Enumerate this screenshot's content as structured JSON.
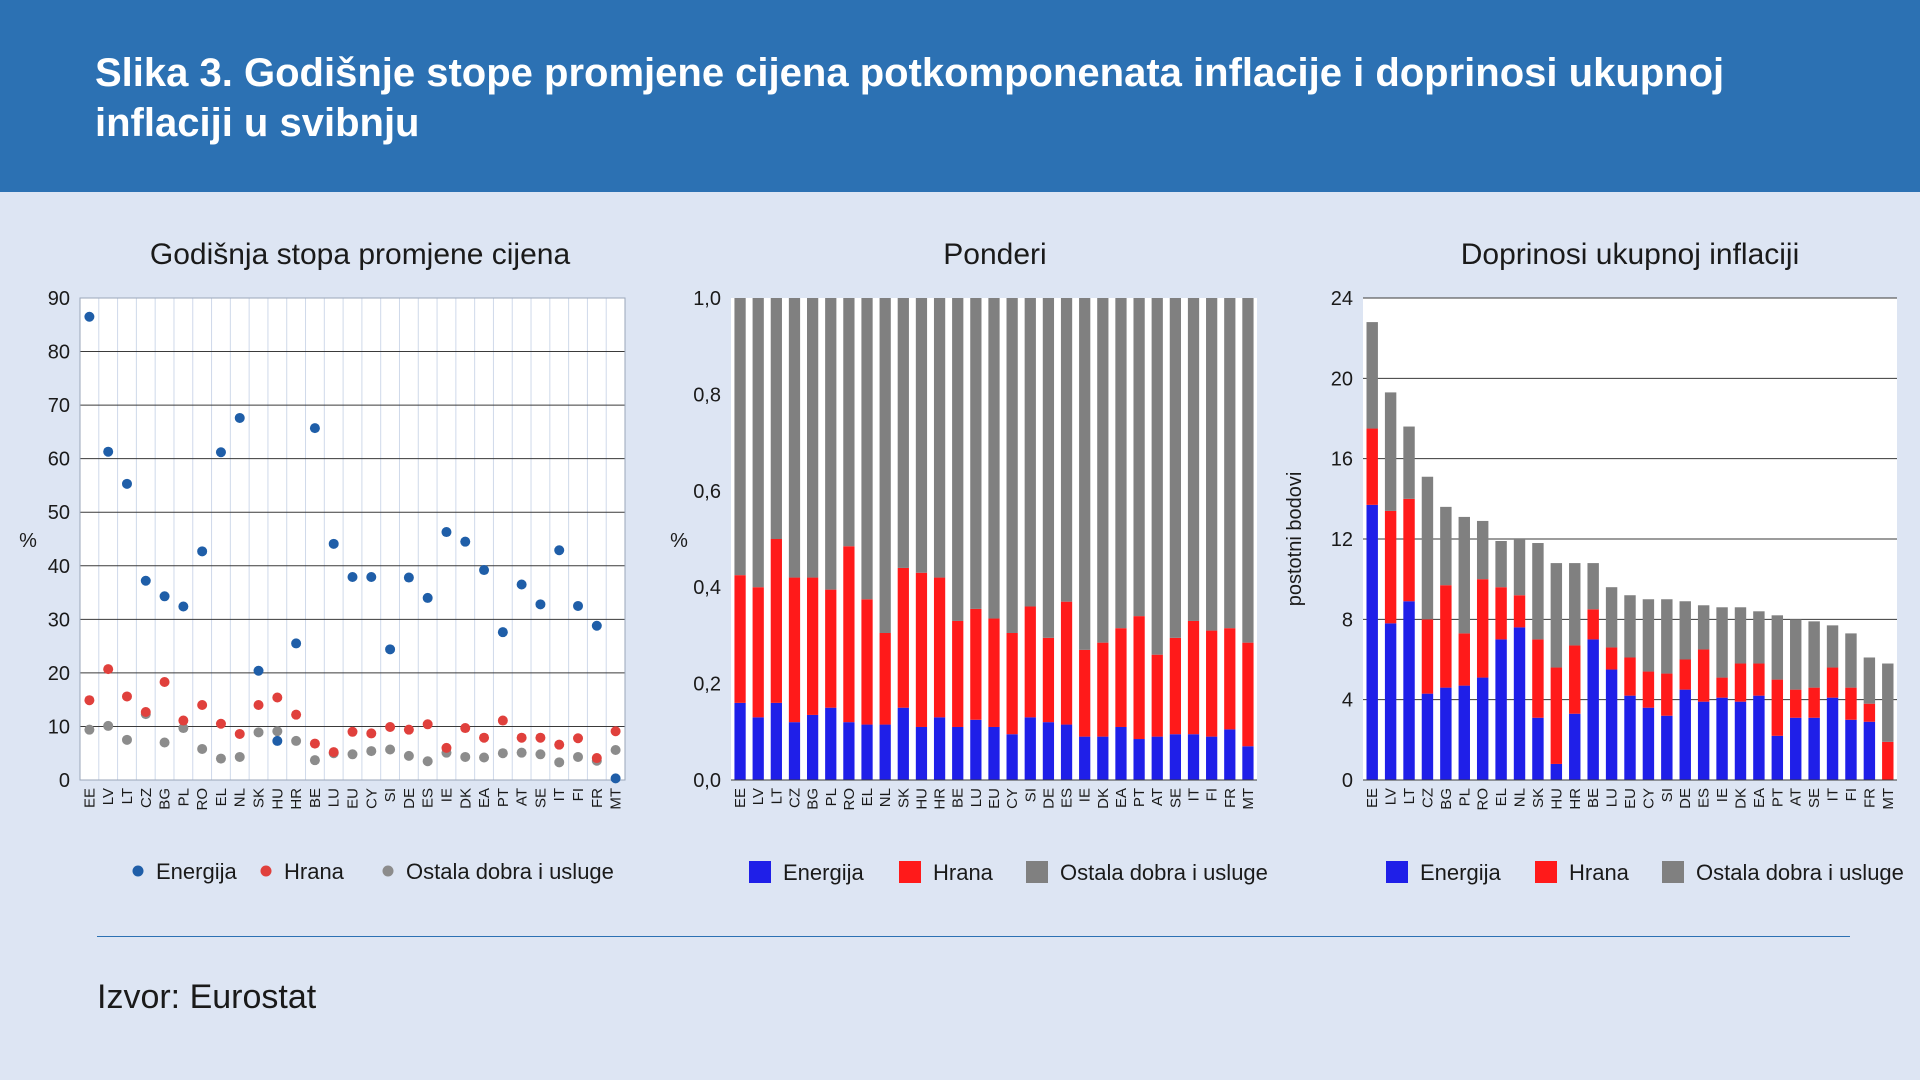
{
  "figure": {
    "title": "Slika 3. Godišnje stope promjene cijena potkomponenata inflacije i doprinosi ukupnoj inflaciji u svibnju",
    "source": "Izvor: Eurostat"
  },
  "colors": {
    "header": "#2c71b3",
    "background": "#dde5f3",
    "energy_dot": "#1f5ea8",
    "food_dot": "#e0403c",
    "other_dot": "#8c8c8c",
    "energy_bar": "#1f1fe8",
    "food_bar": "#ff1a1a",
    "other_bar": "#808080"
  },
  "chart_data": [
    {
      "type": "scatter",
      "title": "Godišnja stopa promjene cijena",
      "ylabel": "%",
      "ylim": [
        0,
        90
      ],
      "yticks": [
        "0",
        "10",
        "20",
        "30",
        "40",
        "50",
        "60",
        "70",
        "80",
        "90"
      ],
      "grid": true,
      "legend": "bottom",
      "categories": [
        "EE",
        "LV",
        "LT",
        "CZ",
        "BG",
        "PL",
        "RO",
        "EL",
        "NL",
        "SK",
        "HU",
        "HR",
        "BE",
        "LU",
        "EU",
        "CY",
        "SI",
        "DE",
        "ES",
        "IE",
        "DK",
        "EA",
        "PT",
        "AT",
        "SE",
        "IT",
        "FI",
        "FR",
        "MT"
      ],
      "series": [
        {
          "name": "Energija",
          "values": [
            86.5,
            61.3,
            55.3,
            37.2,
            34.3,
            32.4,
            42.7,
            61.2,
            67.6,
            20.4,
            7.3,
            25.5,
            65.7,
            44.1,
            37.9,
            37.9,
            24.4,
            37.8,
            34.0,
            46.3,
            44.5,
            39.2,
            27.6,
            36.5,
            32.8,
            42.9,
            32.5,
            28.8,
            0.3
          ]
        },
        {
          "name": "Hrana",
          "values": [
            14.9,
            20.7,
            15.6,
            12.7,
            18.3,
            11.1,
            14.0,
            10.5,
            8.6,
            14.0,
            15.4,
            12.2,
            6.8,
            5.2,
            9.0,
            8.7,
            9.9,
            9.4,
            10.4,
            6.0,
            9.7,
            7.9,
            11.1,
            7.9,
            7.9,
            6.6,
            7.8,
            4.1,
            9.1
          ]
        },
        {
          "name": "Ostala dobra i usluge",
          "values": [
            9.4,
            10.1,
            7.5,
            12.3,
            7.0,
            9.7,
            5.8,
            4.0,
            4.3,
            8.9,
            9.1,
            7.3,
            3.7,
            5.0,
            4.8,
            5.4,
            5.7,
            4.5,
            3.5,
            5.1,
            4.3,
            4.2,
            5.0,
            5.1,
            4.8,
            3.3,
            4.3,
            3.6,
            5.6
          ]
        }
      ]
    },
    {
      "type": "bar",
      "stacked": true,
      "title": "Ponderi",
      "ylabel": "%",
      "ylim": [
        0,
        1
      ],
      "yticks": [
        "0,0",
        "0,2",
        "0,4",
        "0,6",
        "0,8",
        "1,0"
      ],
      "grid": false,
      "legend": "bottom",
      "categories": [
        "EE",
        "LV",
        "LT",
        "CZ",
        "BG",
        "PL",
        "RO",
        "EL",
        "NL",
        "SK",
        "HU",
        "HR",
        "BE",
        "LU",
        "EU",
        "CY",
        "SI",
        "DE",
        "ES",
        "IE",
        "DK",
        "EA",
        "PT",
        "AT",
        "SE",
        "IT",
        "FI",
        "FR",
        "MT"
      ],
      "series": [
        {
          "name": "Energija",
          "values": [
            0.16,
            0.13,
            0.16,
            0.12,
            0.135,
            0.15,
            0.12,
            0.115,
            0.115,
            0.15,
            0.11,
            0.13,
            0.11,
            0.125,
            0.11,
            0.095,
            0.13,
            0.12,
            0.115,
            0.09,
            0.09,
            0.11,
            0.085,
            0.09,
            0.095,
            0.095,
            0.09,
            0.105,
            0.07
          ]
        },
        {
          "name": "Hrana",
          "values": [
            0.265,
            0.27,
            0.34,
            0.3,
            0.285,
            0.245,
            0.365,
            0.26,
            0.19,
            0.29,
            0.32,
            0.29,
            0.22,
            0.23,
            0.225,
            0.21,
            0.23,
            0.175,
            0.255,
            0.18,
            0.195,
            0.205,
            0.255,
            0.17,
            0.2,
            0.235,
            0.22,
            0.21,
            0.215
          ]
        },
        {
          "name": "Ostala dobra i usluge",
          "values": [
            0.575,
            0.6,
            0.5,
            0.58,
            0.58,
            0.605,
            0.515,
            0.625,
            0.695,
            0.56,
            0.57,
            0.58,
            0.67,
            0.645,
            0.665,
            0.695,
            0.64,
            0.705,
            0.63,
            0.73,
            0.715,
            0.685,
            0.66,
            0.74,
            0.705,
            0.67,
            0.69,
            0.685,
            0.715
          ]
        }
      ]
    },
    {
      "type": "bar",
      "stacked": true,
      "title": "Doprinosi ukupnoj inflaciji",
      "ylabel": "postotni bodovi",
      "ylim": [
        0,
        24
      ],
      "yticks": [
        "0",
        "4",
        "8",
        "12",
        "16",
        "20",
        "24"
      ],
      "grid": true,
      "legend": "bottom",
      "categories": [
        "EE",
        "LV",
        "LT",
        "CZ",
        "BG",
        "PL",
        "RO",
        "EL",
        "NL",
        "SK",
        "HU",
        "HR",
        "BE",
        "LU",
        "EU",
        "CY",
        "SI",
        "DE",
        "ES",
        "IE",
        "DK",
        "EA",
        "PT",
        "AT",
        "SE",
        "IT",
        "FI",
        "FR",
        "MT"
      ],
      "series": [
        {
          "name": "Energija",
          "values": [
            13.7,
            7.8,
            8.9,
            4.3,
            4.6,
            4.7,
            5.1,
            7.0,
            7.6,
            3.1,
            0.8,
            3.3,
            7.0,
            5.5,
            4.2,
            3.6,
            3.2,
            4.5,
            3.9,
            4.1,
            3.9,
            4.2,
            2.2,
            3.1,
            3.1,
            4.1,
            3.0,
            2.9,
            0.0
          ]
        },
        {
          "name": "Hrana",
          "values": [
            3.8,
            5.6,
            5.1,
            3.7,
            5.1,
            2.6,
            4.9,
            2.6,
            1.6,
            3.9,
            4.8,
            3.4,
            1.5,
            1.1,
            1.9,
            1.8,
            2.1,
            1.5,
            2.6,
            1.0,
            1.9,
            1.6,
            2.8,
            1.4,
            1.5,
            1.5,
            1.6,
            0.9,
            1.9
          ]
        },
        {
          "name": "Ostala dobra i usluge",
          "values": [
            5.3,
            5.9,
            3.6,
            7.1,
            3.9,
            5.8,
            2.9,
            2.3,
            2.8,
            4.8,
            5.2,
            4.1,
            2.3,
            3.0,
            3.1,
            3.6,
            3.7,
            2.9,
            2.2,
            3.5,
            2.8,
            2.6,
            3.2,
            3.5,
            3.3,
            2.1,
            2.7,
            2.3,
            3.9
          ]
        }
      ]
    }
  ]
}
